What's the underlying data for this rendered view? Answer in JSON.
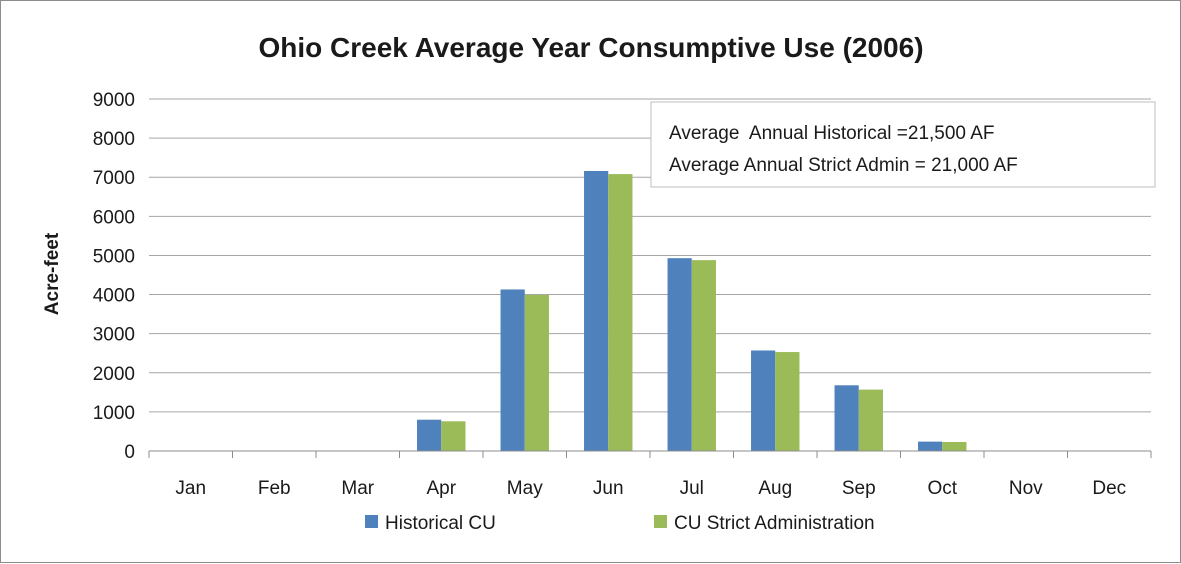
{
  "chart_data": {
    "type": "bar",
    "title": "Ohio Creek Average Year Consumptive Use (2006)",
    "xlabel": "",
    "ylabel": "Acre-feet",
    "ylim": [
      0,
      9000
    ],
    "yticks": [
      0,
      1000,
      2000,
      3000,
      4000,
      5000,
      6000,
      7000,
      8000,
      9000
    ],
    "grid": true,
    "legend_position": "bottom",
    "categories": [
      "Jan",
      "Feb",
      "Mar",
      "Apr",
      "May",
      "Jun",
      "Jul",
      "Aug",
      "Sep",
      "Oct",
      "Nov",
      "Dec"
    ],
    "series": [
      {
        "name": "Historical CU",
        "color": "#4f81bd",
        "values": [
          0,
          0,
          0,
          800,
          4130,
          7160,
          4930,
          2570,
          1680,
          240,
          0,
          0
        ]
      },
      {
        "name": "CU Strict Administration",
        "color": "#9bbb59",
        "values": [
          0,
          0,
          0,
          760,
          3990,
          7080,
          4880,
          2530,
          1570,
          230,
          0,
          0
        ]
      }
    ],
    "annotations": [
      "Average  Annual Historical =21,500 AF",
      "Average Annual Strict Admin = 21,000 AF"
    ]
  }
}
